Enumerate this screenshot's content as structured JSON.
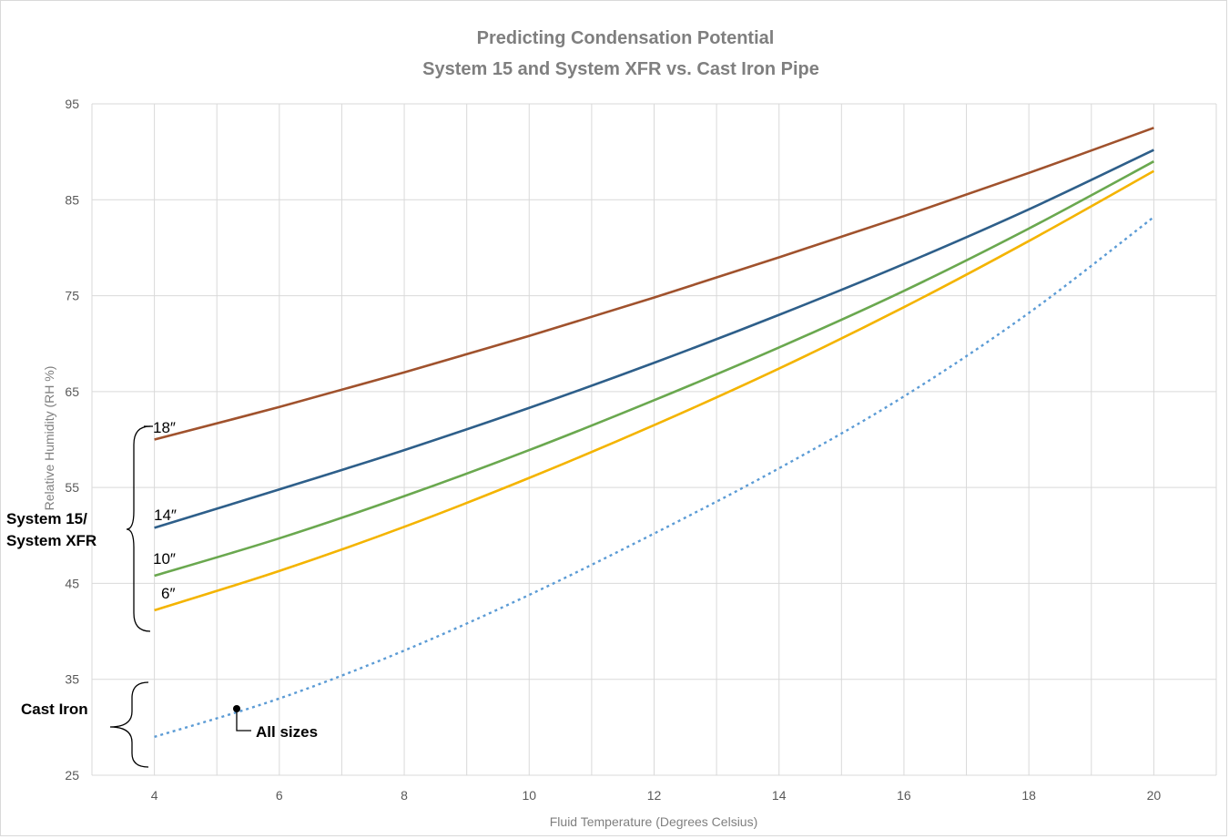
{
  "chart_data": {
    "type": "line",
    "title": "Predicting Condensation Potential",
    "subtitle": "System 15 and System XFR vs. Cast Iron Pipe",
    "xlabel": "Fluid Temperature (Degrees Celsius)",
    "ylabel": "Relative Humidity (RH %)",
    "xlim": [
      3,
      21
    ],
    "ylim": [
      25,
      95
    ],
    "x_ticks": [
      4,
      6,
      8,
      10,
      12,
      14,
      16,
      18,
      20
    ],
    "y_ticks": [
      25,
      35,
      45,
      55,
      65,
      75,
      85,
      95
    ],
    "grid": true,
    "x": [
      4,
      6,
      8,
      10,
      12,
      14,
      16,
      18,
      20
    ],
    "series": [
      {
        "name": "18″",
        "color": "#a0522d",
        "dash": false,
        "values": [
          60.0,
          63.4,
          67.0,
          70.8,
          74.8,
          79.0,
          83.3,
          87.8,
          92.5
        ]
      },
      {
        "name": "14″",
        "color": "#2e5f8a",
        "dash": false,
        "values": [
          50.8,
          54.8,
          58.9,
          63.3,
          68.0,
          73.0,
          78.3,
          84.0,
          90.2
        ]
      },
      {
        "name": "10″",
        "color": "#6aa84f",
        "dash": false,
        "values": [
          45.8,
          49.7,
          54.1,
          58.9,
          64.1,
          69.6,
          75.5,
          82.0,
          89.0
        ]
      },
      {
        "name": "6″",
        "color": "#f4b400",
        "dash": false,
        "values": [
          42.2,
          46.3,
          50.9,
          56.0,
          61.5,
          67.4,
          73.8,
          80.7,
          88.0
        ]
      },
      {
        "name": "All sizes",
        "color": "#5b9bd5",
        "dash": true,
        "values": [
          29.0,
          33.0,
          38.0,
          43.8,
          50.2,
          57.0,
          64.5,
          73.2,
          83.2
        ]
      }
    ],
    "annotations": {
      "group_system": "System 15/",
      "group_system_line2": "System XFR",
      "group_cast_iron": "Cast Iron",
      "all_sizes": "All sizes"
    }
  }
}
